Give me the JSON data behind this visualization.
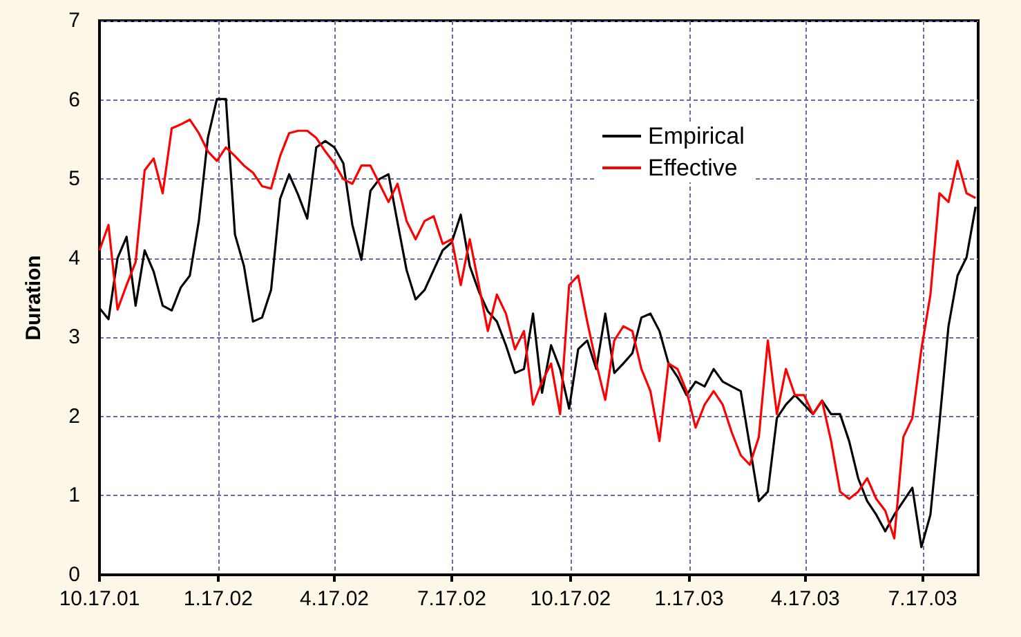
{
  "chart_data": {
    "type": "line",
    "ylabel": "Duration",
    "x": [
      "2001-10-17",
      "2001-10-24",
      "2001-10-31",
      "2001-11-07",
      "2001-11-14",
      "2001-11-21",
      "2001-11-28",
      "2001-12-05",
      "2001-12-12",
      "2001-12-19",
      "2001-12-26",
      "2002-01-02",
      "2002-01-09",
      "2002-01-16",
      "2002-01-23",
      "2002-01-30",
      "2002-02-06",
      "2002-02-13",
      "2002-02-20",
      "2002-02-27",
      "2002-03-06",
      "2002-03-13",
      "2002-03-20",
      "2002-03-27",
      "2002-04-03",
      "2002-04-10",
      "2002-04-17",
      "2002-04-24",
      "2002-05-01",
      "2002-05-08",
      "2002-05-15",
      "2002-05-22",
      "2002-05-29",
      "2002-06-05",
      "2002-06-12",
      "2002-06-19",
      "2002-06-26",
      "2002-07-03",
      "2002-07-10",
      "2002-07-17",
      "2002-07-24",
      "2002-07-31",
      "2002-08-07",
      "2002-08-14",
      "2002-08-21",
      "2002-08-28",
      "2002-09-04",
      "2002-09-11",
      "2002-09-18",
      "2002-09-25",
      "2002-10-02",
      "2002-10-09",
      "2002-10-16",
      "2002-10-23",
      "2002-10-30",
      "2002-11-06",
      "2002-11-13",
      "2002-11-20",
      "2002-11-27",
      "2002-12-04",
      "2002-12-11",
      "2002-12-18",
      "2002-12-25",
      "2003-01-01",
      "2003-01-08",
      "2003-01-15",
      "2003-01-22",
      "2003-01-29",
      "2003-02-05",
      "2003-02-12",
      "2003-02-19",
      "2003-02-26",
      "2003-03-05",
      "2003-03-12",
      "2003-03-19",
      "2003-03-26",
      "2003-04-02",
      "2003-04-09",
      "2003-04-16",
      "2003-04-23",
      "2003-04-30",
      "2003-05-07",
      "2003-05-14",
      "2003-05-21",
      "2003-05-28",
      "2003-06-04",
      "2003-06-11",
      "2003-06-18",
      "2003-06-25",
      "2003-07-02",
      "2003-07-09",
      "2003-07-16",
      "2003-07-23",
      "2003-07-30",
      "2003-08-06",
      "2003-08-13",
      "2003-08-20",
      "2003-08-27"
    ],
    "series": [
      {
        "name": "Empirical",
        "color": "#000000",
        "values": [
          3.37,
          3.23,
          4.0,
          4.27,
          3.4,
          4.1,
          3.83,
          3.4,
          3.34,
          3.63,
          3.78,
          4.47,
          5.52,
          6.01,
          6.01,
          4.3,
          3.9,
          3.2,
          3.25,
          3.6,
          4.75,
          5.06,
          4.8,
          4.5,
          5.4,
          5.48,
          5.4,
          5.2,
          4.42,
          3.98,
          4.85,
          5.0,
          5.06,
          4.45,
          3.85,
          3.48,
          3.6,
          3.85,
          4.1,
          4.2,
          4.55,
          3.9,
          3.58,
          3.33,
          3.2,
          2.9,
          2.55,
          2.6,
          3.3,
          2.3,
          2.9,
          2.6,
          2.1,
          2.85,
          2.96,
          2.6,
          3.3,
          2.55,
          2.67,
          2.8,
          3.25,
          3.3,
          3.08,
          2.67,
          2.5,
          2.27,
          2.44,
          2.38,
          2.6,
          2.44,
          2.38,
          2.32,
          1.63,
          0.93,
          1.05,
          1.98,
          2.15,
          2.27,
          2.15,
          2.03,
          2.2,
          2.03,
          2.03,
          1.69,
          1.22,
          0.93,
          0.76,
          0.55,
          0.76,
          0.93,
          1.1,
          0.35,
          0.76,
          1.92,
          3.14,
          3.78,
          4.01,
          4.65
        ]
      },
      {
        "name": "Effective",
        "color": "#ff0000",
        "values": [
          4.1,
          4.42,
          3.35,
          3.66,
          3.95,
          5.11,
          5.26,
          4.82,
          5.64,
          5.69,
          5.75,
          5.58,
          5.35,
          5.23,
          5.4,
          5.29,
          5.17,
          5.08,
          4.91,
          4.88,
          5.29,
          5.58,
          5.61,
          5.61,
          5.52,
          5.35,
          5.2,
          5.0,
          4.94,
          5.17,
          5.17,
          4.94,
          4.71,
          4.94,
          4.47,
          4.24,
          4.47,
          4.53,
          4.18,
          4.24,
          3.66,
          4.24,
          3.66,
          3.08,
          3.54,
          3.3,
          2.85,
          3.08,
          2.15,
          2.44,
          2.67,
          2.03,
          3.66,
          3.78,
          3.2,
          2.67,
          2.21,
          2.96,
          3.14,
          3.08,
          2.6,
          2.32,
          1.69,
          2.67,
          2.6,
          2.32,
          1.86,
          2.15,
          2.32,
          2.15,
          1.8,
          1.51,
          1.39,
          1.74,
          2.96,
          2.03,
          2.6,
          2.27,
          2.27,
          2.03,
          2.2,
          1.69,
          1.05,
          0.96,
          1.05,
          1.22,
          0.96,
          0.81,
          0.46,
          1.74,
          1.98,
          2.85,
          3.54,
          4.82,
          4.71,
          5.23,
          4.82,
          4.76
        ]
      }
    ],
    "xlim": [
      "2001-10-17",
      "2003-08-29"
    ],
    "xticks": [
      {
        "value": "2001-10-17",
        "label": "10.17.01"
      },
      {
        "value": "2002-01-17",
        "label": "1.17.02"
      },
      {
        "value": "2002-04-17",
        "label": "4.17.02"
      },
      {
        "value": "2002-07-17",
        "label": "7.17.02"
      },
      {
        "value": "2002-10-17",
        "label": "10.17.02"
      },
      {
        "value": "2003-01-17",
        "label": "1.17.03"
      },
      {
        "value": "2003-04-17",
        "label": "4.17.03"
      },
      {
        "value": "2003-07-17",
        "label": "7.17.03"
      }
    ],
    "ylim": [
      0,
      7
    ],
    "yticks": [
      0,
      1,
      2,
      3,
      4,
      5,
      6,
      7
    ],
    "grid": true,
    "legend": "top right",
    "marker": "none",
    "line_style": "solid"
  }
}
